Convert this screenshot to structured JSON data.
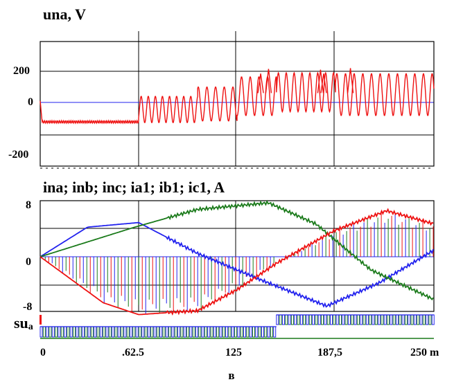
{
  "chart_data": [
    {
      "type": "line",
      "title": "una, V",
      "y_ticks": [
        "200",
        "0",
        "-200"
      ],
      "ylim": [
        -250,
        250
      ],
      "xlim": [
        0,
        250
      ],
      "grid": true,
      "series": [
        {
          "name": "una",
          "color": "#ee1111",
          "segments": [
            {
              "x0": 0,
              "x1": 62.5,
              "mean": -125,
              "amp": 8,
              "period": 1.2
            },
            {
              "x0": 62.5,
              "x1": 100,
              "mean": -45,
              "amp": 85,
              "period": 4.5
            },
            {
              "x0": 100,
              "x1": 125,
              "mean": -10,
              "amp": 110,
              "period": 5.5
            },
            {
              "x0": 125,
              "x1": 150,
              "mean": 40,
              "amp": 125,
              "period": 5.5
            },
            {
              "x0": 150,
              "x1": 187.5,
              "mean": 65,
              "amp": 125,
              "period": 5.0
            },
            {
              "x0": 187.5,
              "x1": 250,
              "mean": 50,
              "amp": 135,
              "period": 5.5
            }
          ],
          "peaks": [
            [
              140,
              185
            ],
            [
              145,
              215
            ],
            [
              178,
              210
            ],
            [
              180,
              185
            ],
            [
              197,
              220
            ]
          ]
        }
      ]
    },
    {
      "type": "line",
      "title": "ina; inb; inc; ia1; ib1; ic1, A",
      "y_ticks": [
        "8",
        "0",
        "-8"
      ],
      "ylim": [
        -9,
        9
      ],
      "xlim": [
        0,
        250
      ],
      "grid": true,
      "series": [
        {
          "name": "ina",
          "color": "#2222ee",
          "envelope": [
            [
              0,
              0
            ],
            [
              30,
              4.5
            ],
            [
              62.5,
              5.2
            ],
            [
              100,
              0.5
            ],
            [
              140,
              -3.5
            ],
            [
              182,
              -7.5
            ],
            [
              215,
              -4
            ],
            [
              250,
              1
            ]
          ]
        },
        {
          "name": "inb",
          "color": "#1a7a1a",
          "envelope": [
            [
              0,
              0
            ],
            [
              60,
              4.5
            ],
            [
              100,
              7.2
            ],
            [
              145,
              8.2
            ],
            [
              175,
              5
            ],
            [
              210,
              -2
            ],
            [
              250,
              -6.5
            ]
          ]
        },
        {
          "name": "inc",
          "color": "#ee1111",
          "envelope": [
            [
              0,
              0
            ],
            [
              40,
              -7
            ],
            [
              62.5,
              -8.8
            ],
            [
              100,
              -8.2
            ],
            [
              125,
              -5
            ],
            [
              150,
              -1
            ],
            [
              187,
              4
            ],
            [
              220,
              7
            ],
            [
              250,
              5
            ]
          ]
        }
      ],
      "switching_region": {
        "x0": 0,
        "x1": 250
      }
    }
  ],
  "x_ticks": [
    "0",
    ".62.5",
    "125",
    "187,5",
    "250 m"
  ],
  "su_label": "su",
  "su_sub": "a",
  "caption": "в",
  "colors": {
    "red": "#ee1111",
    "blue": "#2222ee",
    "green": "#1a7a1a"
  }
}
